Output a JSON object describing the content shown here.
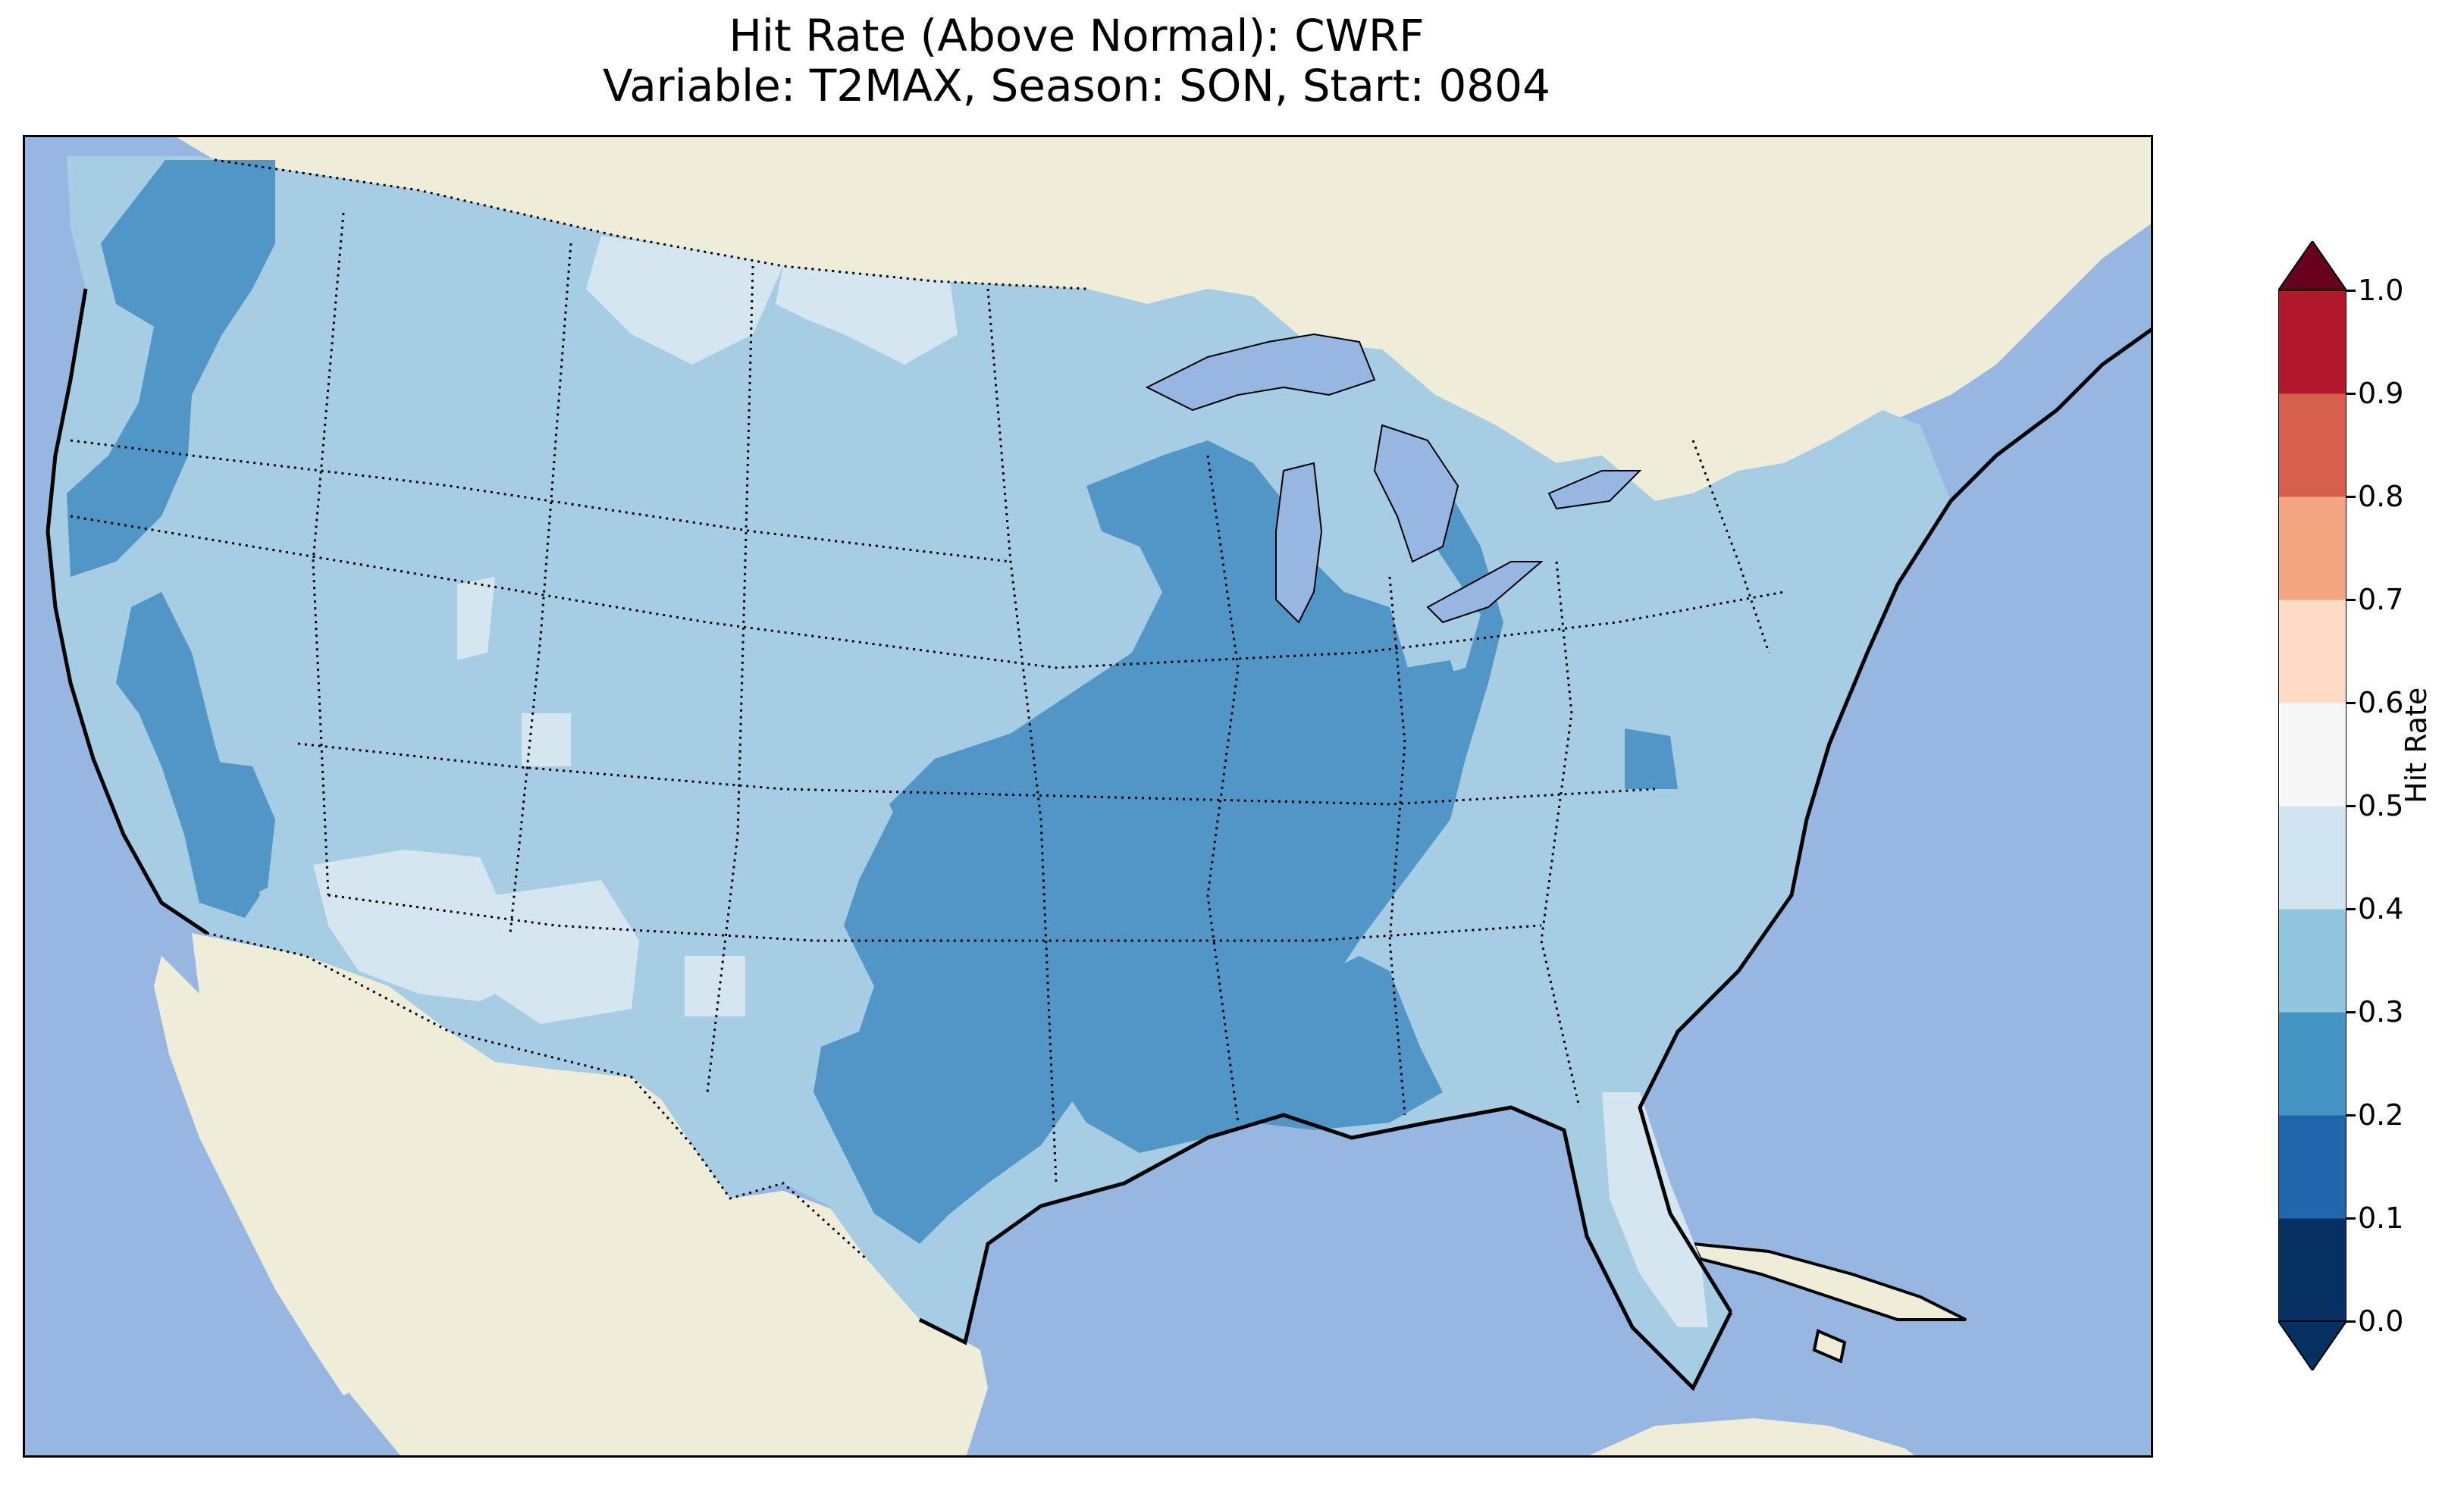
{
  "title": {
    "line1": "Hit Rate (Above Normal): CWRF",
    "line2": "Variable: T2MAX, Season: SON, Start: 0804"
  },
  "colors": {
    "ocean": "#97b6e1",
    "land": "#efedda",
    "lakes": "#97b6e1"
  },
  "colorbar": {
    "label": "Hit Rate",
    "ticks": [
      "0.0",
      "0.1",
      "0.2",
      "0.3",
      "0.4",
      "0.5",
      "0.6",
      "0.7",
      "0.8",
      "0.9",
      "1.0"
    ],
    "bins": [
      {
        "range": [
          0.0,
          0.1
        ],
        "color": "#053061"
      },
      {
        "range": [
          0.1,
          0.2
        ],
        "color": "#2166ac"
      },
      {
        "range": [
          0.2,
          0.3
        ],
        "color": "#4393c3"
      },
      {
        "range": [
          0.3,
          0.4
        ],
        "color": "#92c5de"
      },
      {
        "range": [
          0.4,
          0.5
        ],
        "color": "#d1e5f0"
      },
      {
        "range": [
          0.5,
          0.6
        ],
        "color": "#f7f7f7"
      },
      {
        "range": [
          0.6,
          0.7
        ],
        "color": "#fddbc7"
      },
      {
        "range": [
          0.7,
          0.8
        ],
        "color": "#f4a582"
      },
      {
        "range": [
          0.8,
          0.9
        ],
        "color": "#d6604d"
      },
      {
        "range": [
          0.9,
          1.0
        ],
        "color": "#b2182b"
      }
    ],
    "extend_low_color": "#053061",
    "extend_high_color": "#67001f"
  },
  "regions": [
    {
      "name": "west-coast-bands",
      "bin": "0.2-0.3"
    },
    {
      "name": "great-basin-california",
      "bin": "0.2-0.3"
    },
    {
      "name": "upper-midwest-great-lakes",
      "bin": "0.2-0.3"
    },
    {
      "name": "mississippi-valley-south",
      "bin": "0.2-0.3"
    },
    {
      "name": "central-texas",
      "bin": "0.2-0.3"
    },
    {
      "name": "northern-plains-montana",
      "bin": "0.4-0.5"
    },
    {
      "name": "southwest-arizona-new-mexico",
      "bin": "0.4-0.5"
    },
    {
      "name": "florida-peninsula",
      "bin": "0.4-0.5"
    },
    {
      "name": "remaining-conus",
      "bin": "0.3-0.4"
    }
  ]
}
